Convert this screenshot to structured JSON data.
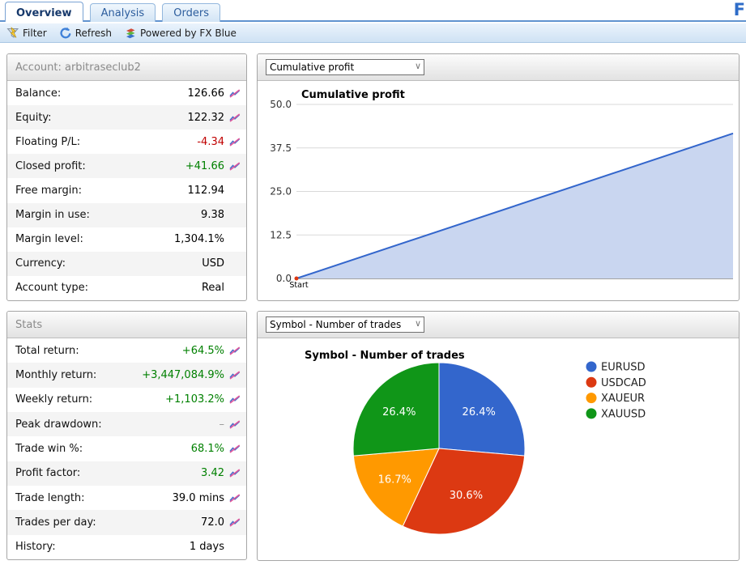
{
  "tabs": [
    {
      "label": "Overview",
      "active": true
    },
    {
      "label": "Analysis",
      "active": false
    },
    {
      "label": "Orders",
      "active": false
    }
  ],
  "logo": {
    "letter": "F"
  },
  "toolbar": {
    "filter_label": "Filter",
    "refresh_label": "Refresh",
    "powered_label": "Powered by FX Blue"
  },
  "account": {
    "title": "Account: arbitraseclub2",
    "rows": [
      {
        "label": "Balance:",
        "value": "126.66",
        "color": "black",
        "chart_icon": true
      },
      {
        "label": "Equity:",
        "value": "122.32",
        "color": "black",
        "chart_icon": true
      },
      {
        "label": "Floating P/L:",
        "value": "-4.34",
        "color": "red",
        "chart_icon": true
      },
      {
        "label": "Closed profit:",
        "value": "+41.66",
        "color": "green",
        "chart_icon": true
      },
      {
        "label": "Free margin:",
        "value": "112.94",
        "color": "black",
        "chart_icon": false
      },
      {
        "label": "Margin in use:",
        "value": "9.38",
        "color": "black",
        "chart_icon": false
      },
      {
        "label": "Margin level:",
        "value": "1,304.1%",
        "color": "black",
        "chart_icon": false
      },
      {
        "label": "Currency:",
        "value": "USD",
        "color": "black",
        "chart_icon": false
      },
      {
        "label": "Account type:",
        "value": "Real",
        "color": "black",
        "chart_icon": false
      }
    ]
  },
  "stats": {
    "title": "Stats",
    "rows": [
      {
        "label": "Total return:",
        "value": "+64.5%",
        "color": "green",
        "chart_icon": true
      },
      {
        "label": "Monthly return:",
        "value": "+3,447,084.9%",
        "color": "green",
        "chart_icon": true
      },
      {
        "label": "Weekly return:",
        "value": "+1,103.2%",
        "color": "green",
        "chart_icon": true
      },
      {
        "label": "Peak drawdown:",
        "value": "–",
        "color": "gray",
        "chart_icon": true
      },
      {
        "label": "Trade win %:",
        "value": "68.1%",
        "color": "green",
        "chart_icon": true
      },
      {
        "label": "Profit factor:",
        "value": "3.42",
        "color": "green",
        "chart_icon": true
      },
      {
        "label": "Trade length:",
        "value": "39.0 mins",
        "color": "black",
        "chart_icon": true
      },
      {
        "label": "Trades per day:",
        "value": "72.0",
        "color": "black",
        "chart_icon": true
      },
      {
        "label": "History:",
        "value": "1 days",
        "color": "black",
        "chart_icon": false
      }
    ]
  },
  "profit_panel": {
    "dropdown_value": "Cumulative profit"
  },
  "symbol_panel": {
    "dropdown_value": "Symbol - Number of trades"
  },
  "chart_data": [
    {
      "type": "area",
      "title": "Cumulative profit",
      "x_tick_labels": [
        "Start"
      ],
      "points": [
        {
          "x": 0,
          "y": 0
        },
        {
          "x": 1,
          "y": 41.66
        }
      ],
      "ylim": [
        0,
        50
      ],
      "yticks": [
        0,
        12.5,
        25,
        37.5,
        50
      ],
      "grid": true,
      "line_color": "#3366cc",
      "fill_color": "#c9d6f0",
      "start_dot_color": "#dc3912",
      "axis_color": "#444444",
      "grid_color": "#d9d9d9"
    },
    {
      "type": "pie",
      "title": "Symbol - Number of trades",
      "labels": [
        "EURUSD",
        "USDCAD",
        "XAUEUR",
        "XAUUSD"
      ],
      "values": [
        26.4,
        30.6,
        16.7,
        26.4
      ],
      "display_labels": [
        "26.4%",
        "30.6%",
        "16.7%",
        "26.4%"
      ],
      "colors": [
        "#3366cc",
        "#dc3912",
        "#ff9900",
        "#109618"
      ],
      "legend_position": "right"
    }
  ]
}
